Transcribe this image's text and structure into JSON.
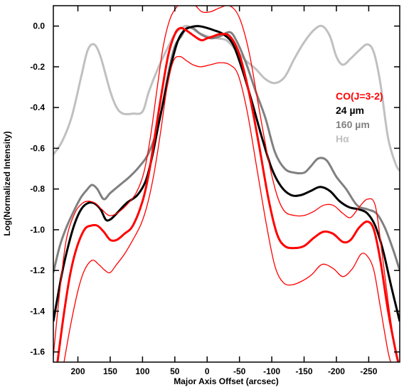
{
  "chart_data": {
    "type": "line",
    "title": "",
    "xlabel": "Major Axis Offset (arcsec)",
    "ylabel": "Log(Normalized Intensity)",
    "xlim": [
      238,
      -298
    ],
    "ylim": [
      -1.65,
      0.1
    ],
    "x_ticks": [
      200,
      150,
      100,
      50,
      0,
      -50,
      -100,
      -150,
      -200,
      -250
    ],
    "x_tick_labels": [
      "200",
      "150",
      "100",
      "50",
      "0",
      "-50",
      "-100",
      "-150",
      "-200",
      "-250"
    ],
    "y_ticks": [
      0.0,
      -0.2,
      -0.4,
      -0.6,
      -0.8,
      -1.0,
      -1.2,
      -1.4,
      -1.6
    ],
    "y_tick_labels": [
      "0.0",
      "-0.2",
      "-0.4",
      "-0.6",
      "-0.8",
      "-1.0",
      "-1.2",
      "-1.4",
      "-1.6"
    ],
    "grid": false,
    "legend": {
      "position": "right",
      "entries": [
        {
          "label": "CO(J=3-2)",
          "color": "#ff0000"
        },
        {
          "label": "24 µm",
          "color": "#000000"
        },
        {
          "label": "160 µm",
          "color": "#808080"
        },
        {
          "label": "Hα",
          "color": "#c0c0c0"
        }
      ]
    },
    "series": [
      {
        "color": "#c0c0c0",
        "width": 3,
        "points": [
          [
            238,
            -0.63
          ],
          [
            225,
            -0.57
          ],
          [
            210,
            -0.45
          ],
          [
            195,
            -0.25
          ],
          [
            185,
            -0.12
          ],
          [
            175,
            -0.09
          ],
          [
            165,
            -0.15
          ],
          [
            150,
            -0.32
          ],
          [
            140,
            -0.4
          ],
          [
            130,
            -0.43
          ],
          [
            115,
            -0.43
          ],
          [
            100,
            -0.42
          ],
          [
            90,
            -0.32
          ],
          [
            75,
            -0.2
          ],
          [
            60,
            -0.1
          ],
          [
            50,
            -0.04
          ],
          [
            40,
            -0.01
          ],
          [
            30,
            0.0
          ],
          [
            15,
            -0.03
          ],
          [
            0,
            -0.05
          ],
          [
            -15,
            -0.06
          ],
          [
            -30,
            -0.07
          ],
          [
            -45,
            -0.12
          ],
          [
            -60,
            -0.17
          ],
          [
            -75,
            -0.21
          ],
          [
            -90,
            -0.26
          ],
          [
            -105,
            -0.28
          ],
          [
            -120,
            -0.25
          ],
          [
            -135,
            -0.16
          ],
          [
            -150,
            -0.08
          ],
          [
            -165,
            -0.02
          ],
          [
            -178,
            0.0
          ],
          [
            -190,
            -0.05
          ],
          [
            -200,
            -0.15
          ],
          [
            -210,
            -0.19
          ],
          [
            -222,
            -0.16
          ],
          [
            -235,
            -0.12
          ],
          [
            -248,
            -0.09
          ],
          [
            -258,
            -0.13
          ],
          [
            -268,
            -0.28
          ],
          [
            -280,
            -0.55
          ],
          [
            -292,
            -0.68
          ],
          [
            -298,
            -0.71
          ]
        ]
      },
      {
        "color": "#808080",
        "width": 3,
        "points": [
          [
            238,
            -1.21
          ],
          [
            228,
            -1.08
          ],
          [
            218,
            -0.99
          ],
          [
            205,
            -0.9
          ],
          [
            195,
            -0.84
          ],
          [
            185,
            -0.8
          ],
          [
            178,
            -0.78
          ],
          [
            170,
            -0.8
          ],
          [
            160,
            -0.85
          ],
          [
            150,
            -0.82
          ],
          [
            135,
            -0.78
          ],
          [
            120,
            -0.74
          ],
          [
            105,
            -0.69
          ],
          [
            90,
            -0.62
          ],
          [
            75,
            -0.48
          ],
          [
            60,
            -0.23
          ],
          [
            50,
            -0.1
          ],
          [
            40,
            -0.05
          ],
          [
            32,
            -0.01
          ],
          [
            22,
            -0.01
          ],
          [
            10,
            -0.04
          ],
          [
            -5,
            -0.06
          ],
          [
            -20,
            -0.05
          ],
          [
            -35,
            -0.03
          ],
          [
            -45,
            -0.07
          ],
          [
            -60,
            -0.18
          ],
          [
            -75,
            -0.32
          ],
          [
            -90,
            -0.45
          ],
          [
            -105,
            -0.62
          ],
          [
            -120,
            -0.7
          ],
          [
            -135,
            -0.72
          ],
          [
            -150,
            -0.72
          ],
          [
            -160,
            -0.69
          ],
          [
            -172,
            -0.65
          ],
          [
            -185,
            -0.66
          ],
          [
            -200,
            -0.74
          ],
          [
            -215,
            -0.8
          ],
          [
            -232,
            -0.88
          ],
          [
            -248,
            -0.9
          ],
          [
            -262,
            -0.92
          ],
          [
            -275,
            -0.99
          ],
          [
            -288,
            -1.1
          ],
          [
            -298,
            -1.2
          ]
        ]
      },
      {
        "color": "#000000",
        "width": 3,
        "points": [
          [
            238,
            -1.45
          ],
          [
            225,
            -1.22
          ],
          [
            215,
            -1.08
          ],
          [
            205,
            -0.97
          ],
          [
            195,
            -0.9
          ],
          [
            185,
            -0.87
          ],
          [
            175,
            -0.87
          ],
          [
            165,
            -0.9
          ],
          [
            157,
            -0.95
          ],
          [
            150,
            -0.95
          ],
          [
            140,
            -0.92
          ],
          [
            125,
            -0.87
          ],
          [
            108,
            -0.83
          ],
          [
            95,
            -0.76
          ],
          [
            85,
            -0.64
          ],
          [
            75,
            -0.48
          ],
          [
            65,
            -0.33
          ],
          [
            55,
            -0.18
          ],
          [
            45,
            -0.07
          ],
          [
            35,
            -0.02
          ],
          [
            25,
            -0.005
          ],
          [
            15,
            0.0
          ],
          [
            5,
            -0.005
          ],
          [
            -10,
            -0.02
          ],
          [
            -25,
            -0.04
          ],
          [
            -40,
            -0.09
          ],
          [
            -55,
            -0.22
          ],
          [
            -70,
            -0.38
          ],
          [
            -85,
            -0.55
          ],
          [
            -100,
            -0.7
          ],
          [
            -115,
            -0.79
          ],
          [
            -130,
            -0.83
          ],
          [
            -145,
            -0.83
          ],
          [
            -160,
            -0.81
          ],
          [
            -175,
            -0.79
          ],
          [
            -190,
            -0.81
          ],
          [
            -205,
            -0.86
          ],
          [
            -220,
            -0.89
          ],
          [
            -235,
            -0.9
          ],
          [
            -248,
            -0.92
          ],
          [
            -260,
            -0.98
          ],
          [
            -272,
            -1.1
          ],
          [
            -285,
            -1.28
          ],
          [
            -298,
            -1.45
          ]
        ]
      },
      {
        "color": "#ff0000",
        "width": 3,
        "points": [
          [
            232,
            -1.66
          ],
          [
            222,
            -1.42
          ],
          [
            212,
            -1.22
          ],
          [
            202,
            -1.09
          ],
          [
            190,
            -1.0
          ],
          [
            180,
            -0.98
          ],
          [
            170,
            -0.98
          ],
          [
            160,
            -1.01
          ],
          [
            150,
            -1.05
          ],
          [
            140,
            -1.05
          ],
          [
            128,
            -1.02
          ],
          [
            115,
            -0.98
          ],
          [
            100,
            -0.86
          ],
          [
            90,
            -0.72
          ],
          [
            80,
            -0.52
          ],
          [
            70,
            -0.32
          ],
          [
            60,
            -0.14
          ],
          [
            50,
            -0.04
          ],
          [
            42,
            -0.01
          ],
          [
            33,
            -0.02
          ],
          [
            24,
            -0.04
          ],
          [
            15,
            -0.06
          ],
          [
            8,
            -0.07
          ],
          [
            0,
            -0.06
          ],
          [
            -10,
            -0.05
          ],
          [
            -20,
            -0.04
          ],
          [
            -35,
            -0.05
          ],
          [
            -50,
            -0.14
          ],
          [
            -65,
            -0.33
          ],
          [
            -80,
            -0.58
          ],
          [
            -95,
            -0.85
          ],
          [
            -108,
            -1.02
          ],
          [
            -120,
            -1.08
          ],
          [
            -135,
            -1.09
          ],
          [
            -150,
            -1.08
          ],
          [
            -165,
            -1.04
          ],
          [
            -180,
            -1.01
          ],
          [
            -195,
            -1.02
          ],
          [
            -210,
            -1.06
          ],
          [
            -222,
            -1.05
          ],
          [
            -235,
            -0.99
          ],
          [
            -248,
            -0.96
          ],
          [
            -258,
            -1.0
          ],
          [
            -268,
            -1.15
          ],
          [
            -280,
            -1.4
          ],
          [
            -292,
            -1.6
          ],
          [
            -298,
            -1.68
          ]
        ]
      },
      {
        "color": "#ff0000",
        "width": 1.3,
        "points": [
          [
            222,
            -1.66
          ],
          [
            212,
            -1.48
          ],
          [
            200,
            -1.3
          ],
          [
            190,
            -1.2
          ],
          [
            178,
            -1.15
          ],
          [
            168,
            -1.17
          ],
          [
            158,
            -1.2
          ],
          [
            150,
            -1.21
          ],
          [
            140,
            -1.17
          ],
          [
            128,
            -1.12
          ],
          [
            115,
            -1.05
          ],
          [
            102,
            -0.97
          ],
          [
            92,
            -0.87
          ],
          [
            82,
            -0.72
          ],
          [
            72,
            -0.52
          ],
          [
            62,
            -0.3
          ],
          [
            52,
            -0.17
          ],
          [
            42,
            -0.15
          ],
          [
            32,
            -0.17
          ],
          [
            22,
            -0.19
          ],
          [
            10,
            -0.2
          ],
          [
            -5,
            -0.19
          ],
          [
            -20,
            -0.18
          ],
          [
            -35,
            -0.19
          ],
          [
            -48,
            -0.24
          ],
          [
            -62,
            -0.42
          ],
          [
            -77,
            -0.7
          ],
          [
            -92,
            -0.98
          ],
          [
            -105,
            -1.18
          ],
          [
            -118,
            -1.26
          ],
          [
            -132,
            -1.27
          ],
          [
            -148,
            -1.25
          ],
          [
            -162,
            -1.22
          ],
          [
            -178,
            -1.17
          ],
          [
            -195,
            -1.19
          ],
          [
            -210,
            -1.23
          ],
          [
            -225,
            -1.19
          ],
          [
            -238,
            -1.12
          ],
          [
            -248,
            -1.13
          ],
          [
            -258,
            -1.2
          ],
          [
            -268,
            -1.38
          ],
          [
            -280,
            -1.6
          ],
          [
            -287,
            -1.68
          ]
        ]
      },
      {
        "color": "#ff0000",
        "width": 1.3,
        "points": [
          [
            238,
            -1.62
          ],
          [
            228,
            -1.3
          ],
          [
            218,
            -1.05
          ],
          [
            205,
            -0.92
          ],
          [
            193,
            -0.87
          ],
          [
            183,
            -0.86
          ],
          [
            173,
            -0.87
          ],
          [
            163,
            -0.9
          ],
          [
            152,
            -0.93
          ],
          [
            140,
            -0.92
          ],
          [
            125,
            -0.88
          ],
          [
            110,
            -0.82
          ],
          [
            98,
            -0.72
          ],
          [
            88,
            -0.55
          ],
          [
            78,
            -0.32
          ],
          [
            68,
            -0.1
          ],
          [
            58,
            0.03
          ],
          [
            48,
            0.09
          ],
          [
            38,
            0.12
          ],
          [
            28,
            0.12
          ],
          [
            18,
            0.1
          ],
          [
            8,
            0.07
          ],
          [
            -5,
            0.07
          ],
          [
            -20,
            0.09
          ],
          [
            -35,
            0.1
          ],
          [
            -50,
            0.04
          ],
          [
            -65,
            -0.13
          ],
          [
            -80,
            -0.4
          ],
          [
            -95,
            -0.66
          ],
          [
            -108,
            -0.83
          ],
          [
            -120,
            -0.91
          ],
          [
            -135,
            -0.93
          ],
          [
            -150,
            -0.93
          ],
          [
            -165,
            -0.91
          ],
          [
            -180,
            -0.88
          ],
          [
            -195,
            -0.88
          ],
          [
            -210,
            -0.92
          ],
          [
            -222,
            -0.94
          ],
          [
            -235,
            -0.89
          ],
          [
            -248,
            -0.85
          ],
          [
            -260,
            -0.88
          ],
          [
            -270,
            -1.1
          ],
          [
            -282,
            -1.4
          ],
          [
            -292,
            -1.6
          ],
          [
            -298,
            -1.68
          ]
        ]
      }
    ]
  }
}
